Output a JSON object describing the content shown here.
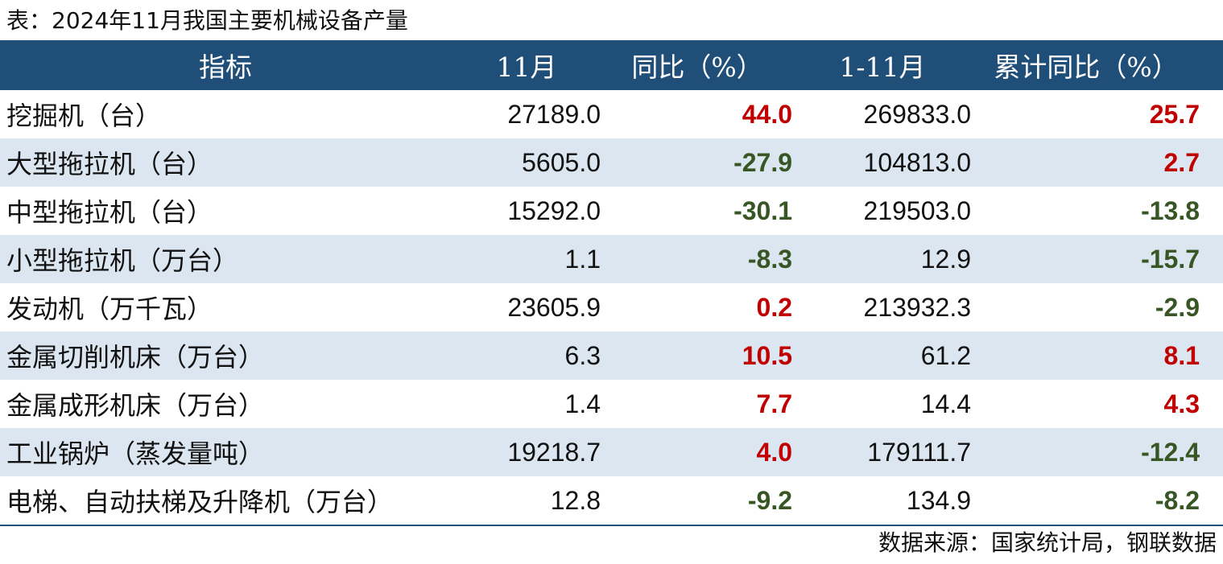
{
  "caption": "表：2024年11月我国主要机械设备产量",
  "colors": {
    "header_bg": "#1f4e79",
    "stripe": "#dce6f1",
    "positive": "#c00000",
    "negative": "#375623"
  },
  "header": {
    "col1": "指标",
    "col2": "11月",
    "col3": "同比（%）",
    "col4": "1-11月",
    "col5": "累计同比（%）"
  },
  "rows": [
    {
      "name": "挖掘机（台）",
      "nov": "27189.0",
      "yoy": "44.0",
      "ytd": "269833.0",
      "ytd_yoy": "25.7"
    },
    {
      "name": "大型拖拉机（台）",
      "nov": "5605.0",
      "yoy": "-27.9",
      "ytd": "104813.0",
      "ytd_yoy": "2.7"
    },
    {
      "name": "中型拖拉机（台）",
      "nov": "15292.0",
      "yoy": "-30.1",
      "ytd": "219503.0",
      "ytd_yoy": "-13.8"
    },
    {
      "name": "小型拖拉机（万台）",
      "nov": "1.1",
      "yoy": "-8.3",
      "ytd": "12.9",
      "ytd_yoy": "-15.7"
    },
    {
      "name": "发动机（万千瓦）",
      "nov": "23605.9",
      "yoy": "0.2",
      "ytd": "213932.3",
      "ytd_yoy": "-2.9"
    },
    {
      "name": "金属切削机床（万台）",
      "nov": "6.3",
      "yoy": "10.5",
      "ytd": "61.2",
      "ytd_yoy": "8.1"
    },
    {
      "name": "金属成形机床（万台）",
      "nov": "1.4",
      "yoy": "7.7",
      "ytd": "14.4",
      "ytd_yoy": "4.3"
    },
    {
      "name": "工业锅炉（蒸发量吨）",
      "nov": "19218.7",
      "yoy": "4.0",
      "ytd": "179111.7",
      "ytd_yoy": "-12.4"
    },
    {
      "name": "电梯、自动扶梯及升降机（万台）",
      "nov": "12.8",
      "yoy": "-9.2",
      "ytd": "134.9",
      "ytd_yoy": "-8.2"
    }
  ],
  "source": "数据来源：国家统计局，钢联数据"
}
